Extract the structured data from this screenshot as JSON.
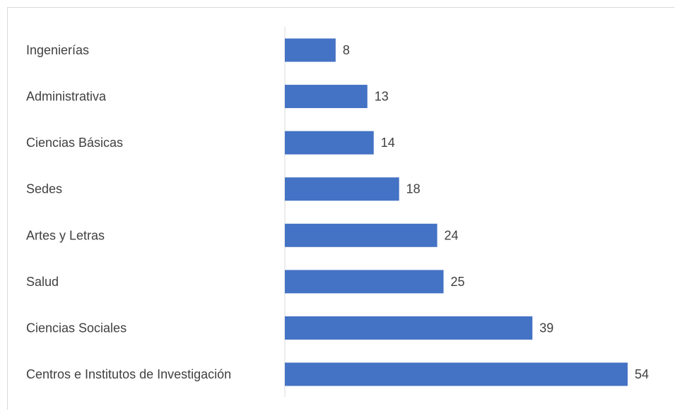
{
  "chart_data": {
    "type": "bar",
    "orientation": "horizontal",
    "categories": [
      "Ingenierías",
      "Administrativa",
      "Ciencias Básicas",
      "Sedes",
      "Artes y Letras",
      "Salud",
      "Ciencias Sociales",
      "Centros e Institutos de Investigación"
    ],
    "values": [
      8,
      13,
      14,
      18,
      24,
      25,
      39,
      54
    ],
    "title": "",
    "xlabel": "",
    "ylabel": "",
    "xlim": [
      0,
      54
    ],
    "grid": false,
    "legend": "none",
    "data_labels": true,
    "colors": {
      "bar": "#4472c4",
      "axis": "#d9d9d9",
      "text": "#404040"
    }
  }
}
